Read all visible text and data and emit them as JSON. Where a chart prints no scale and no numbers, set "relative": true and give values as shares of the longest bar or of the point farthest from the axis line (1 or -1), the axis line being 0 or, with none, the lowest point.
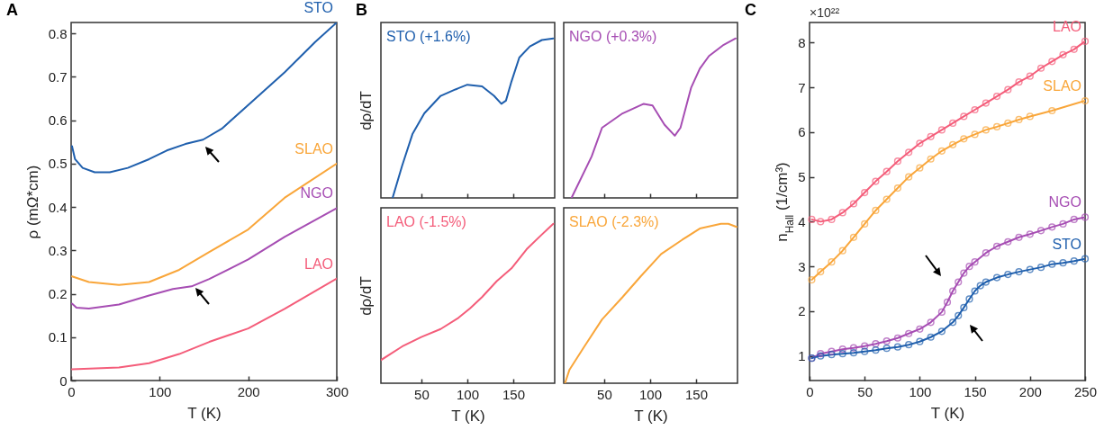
{
  "chart_data": [
    {
      "type": "line",
      "title": "A",
      "xlabel": "T (K)",
      "ylabel": "ρ (mΩ*cm)",
      "xlim": [
        0,
        300
      ],
      "xticks": [
        0,
        100,
        200,
        300
      ],
      "ylim": [
        0,
        0.825
      ],
      "yticks": [
        0,
        0.1,
        0.2,
        0.3,
        0.4,
        0.5,
        0.6,
        0.7,
        0.8
      ],
      "legend": false,
      "grid": false,
      "marker": "none",
      "series": [
        {
          "name": "STO",
          "color": "#1f5fad",
          "x": [
            1,
            4.4,
            13,
            26.6,
            43.6,
            64,
            88,
            108,
            129,
            149,
            170,
            200,
            241,
            275.5,
            300
          ],
          "values": [
            0.54,
            0.51,
            0.49,
            0.48,
            0.48,
            0.49,
            0.51,
            0.53,
            0.545,
            0.555,
            0.58,
            0.635,
            0.71,
            0.78,
            0.825
          ]
        },
        {
          "name": "SLAO",
          "color": "#f9a63a",
          "x": [
            1,
            20,
            54,
            88,
            122,
            156,
            200,
            241,
            300
          ],
          "values": [
            0.24,
            0.227,
            0.22,
            0.227,
            0.255,
            0.296,
            0.348,
            0.421,
            0.5
          ]
        },
        {
          "name": "NGO",
          "color": "#a64db3",
          "x": [
            1,
            6,
            20,
            54,
            88,
            115,
            136,
            156,
            200,
            241,
            300
          ],
          "values": [
            0.177,
            0.168,
            0.166,
            0.175,
            0.196,
            0.211,
            0.217,
            0.234,
            0.279,
            0.331,
            0.397
          ]
        },
        {
          "name": "LAO",
          "color": "#f45d7a",
          "x": [
            1,
            54,
            88,
            122,
            156,
            200,
            241,
            300
          ],
          "values": [
            0.026,
            0.03,
            0.04,
            0.061,
            0.089,
            0.12,
            0.165,
            0.235
          ]
        }
      ]
    },
    {
      "type": "line",
      "title": "B",
      "ylabel": "dρ/dT",
      "relative": true,
      "xlim": [
        6,
        195
      ],
      "xticks": [
        50,
        100,
        150
      ],
      "tick_labels": false,
      "legend": false,
      "series": [
        {
          "name": "STO (+1.6%)",
          "color": "#1f5fad",
          "x": [
            18.7,
            29,
            40.3,
            53.2,
            71,
            87,
            100,
            116,
            129,
            137,
            142,
            148,
            156.5,
            168,
            181,
            193.5
          ],
          "values": [
            0,
            0.2,
            0.4,
            0.53,
            0.64,
            0.68,
            0.71,
            0.7,
            0.64,
            0.59,
            0.61,
            0.73,
            0.88,
            0.95,
            0.99,
            1
          ]
        }
      ]
    },
    {
      "type": "line",
      "ylabel": null,
      "relative": true,
      "xlim": [
        6,
        195
      ],
      "xticks": [
        50,
        100,
        150
      ],
      "tick_labels": false,
      "legend": false,
      "series": [
        {
          "name": "NGO (+0.3%)",
          "color": "#a64db3",
          "x": [
            14.5,
            36.4,
            47.7,
            70,
            93,
            102.6,
            115.5,
            126.8,
            133,
            144.5,
            154,
            164,
            180,
            193
          ],
          "values": [
            0,
            0.26,
            0.44,
            0.53,
            0.59,
            0.58,
            0.46,
            0.39,
            0.44,
            0.69,
            0.81,
            0.89,
            0.96,
            1
          ]
        }
      ]
    },
    {
      "type": "line",
      "xlabel": "T (K)",
      "ylabel": "dρ/dT",
      "relative": true,
      "xlim": [
        6,
        195
      ],
      "xticks": [
        50,
        100,
        150
      ],
      "tick_labels": "x",
      "legend": false,
      "series": [
        {
          "name": "LAO (-1.5%)",
          "color": "#f45d7a",
          "x": [
            6,
            29,
            50,
            71,
            90.3,
            103,
            116,
            132,
            148,
            164.5,
            180.6,
            193.5
          ],
          "values": [
            0.145,
            0.23,
            0.29,
            0.34,
            0.41,
            0.47,
            0.54,
            0.64,
            0.72,
            0.84,
            0.93,
            1
          ]
        }
      ]
    },
    {
      "type": "line",
      "xlabel": "T (K)",
      "relative": true,
      "xlim": [
        6,
        195
      ],
      "xticks": [
        50,
        100,
        150
      ],
      "tick_labels": "x",
      "legend": false,
      "series": [
        {
          "name": "SLAO (-2.3%)",
          "color": "#f9a63a",
          "x": [
            7.4,
            12.3,
            28.4,
            47.7,
            70,
            89.7,
            112,
            135,
            154,
            177,
            185,
            194
          ],
          "values": [
            0,
            0.085,
            0.23,
            0.4,
            0.54,
            0.67,
            0.81,
            0.9,
            0.97,
            1,
            1,
            0.98
          ]
        }
      ]
    },
    {
      "type": "line",
      "title": "C",
      "xlabel": "T (K)",
      "ylabel": "n$_{Hall}$ (1/cm³)",
      "annotations": [
        "×10²²"
      ],
      "xlim": [
        0,
        250
      ],
      "xticks": [
        0,
        50,
        100,
        150,
        200,
        250
      ],
      "ylim": [
        0.45,
        8.45
      ],
      "yticks": [
        1,
        2,
        3,
        4,
        5,
        6,
        7,
        8
      ],
      "legend": false,
      "grid": false,
      "marker": "circle",
      "series": [
        {
          "name": "LAO",
          "color": "#f45d7a",
          "x": [
            2,
            10,
            20,
            30,
            40,
            50,
            60,
            70,
            80,
            90,
            100,
            110,
            120,
            130,
            140,
            150,
            160,
            170,
            180,
            190,
            200,
            210,
            220,
            230,
            240,
            250
          ],
          "values": [
            4.05,
            4.0,
            4.05,
            4.2,
            4.4,
            4.65,
            4.9,
            5.12,
            5.35,
            5.55,
            5.75,
            5.9,
            6.05,
            6.2,
            6.35,
            6.5,
            6.65,
            6.8,
            6.95,
            7.12,
            7.25,
            7.43,
            7.58,
            7.73,
            7.85,
            8.03
          ]
        },
        {
          "name": "SLAO",
          "color": "#f9a63a",
          "x": [
            2,
            10,
            20,
            30,
            40,
            50,
            60,
            70,
            80,
            90,
            100,
            110,
            120,
            130,
            140,
            150,
            160,
            170,
            180,
            190,
            200,
            220,
            250
          ],
          "values": [
            2.7,
            2.88,
            3.1,
            3.35,
            3.65,
            3.95,
            4.25,
            4.5,
            4.75,
            5.0,
            5.2,
            5.4,
            5.58,
            5.72,
            5.85,
            5.95,
            6.05,
            6.12,
            6.2,
            6.28,
            6.35,
            6.48,
            6.7
          ]
        },
        {
          "name": "NGO",
          "color": "#a64db3",
          "x": [
            2,
            10,
            20,
            30,
            40,
            50,
            60,
            70,
            80,
            90,
            100,
            110,
            120,
            125,
            130,
            135,
            140,
            145,
            150,
            160,
            170,
            180,
            190,
            200,
            210,
            220,
            230,
            240,
            250
          ],
          "values": [
            0.95,
            1.05,
            1.1,
            1.15,
            1.18,
            1.22,
            1.27,
            1.33,
            1.4,
            1.5,
            1.6,
            1.75,
            1.98,
            2.2,
            2.45,
            2.65,
            2.85,
            3.0,
            3.1,
            3.3,
            3.45,
            3.55,
            3.65,
            3.72,
            3.8,
            3.88,
            3.95,
            4.05,
            4.1
          ]
        },
        {
          "name": "STO",
          "color": "#1f5fad",
          "x": [
            2,
            10,
            20,
            30,
            40,
            50,
            60,
            70,
            80,
            90,
            100,
            110,
            120,
            130,
            135,
            140,
            145,
            150,
            155,
            160,
            170,
            180,
            190,
            200,
            210,
            220,
            230,
            240,
            250
          ],
          "values": [
            0.95,
            1.0,
            1.03,
            1.05,
            1.07,
            1.1,
            1.13,
            1.17,
            1.2,
            1.25,
            1.32,
            1.42,
            1.55,
            1.75,
            1.9,
            2.08,
            2.27,
            2.45,
            2.57,
            2.65,
            2.75,
            2.82,
            2.88,
            2.93,
            2.98,
            3.05,
            3.08,
            3.12,
            3.17
          ]
        }
      ]
    }
  ]
}
